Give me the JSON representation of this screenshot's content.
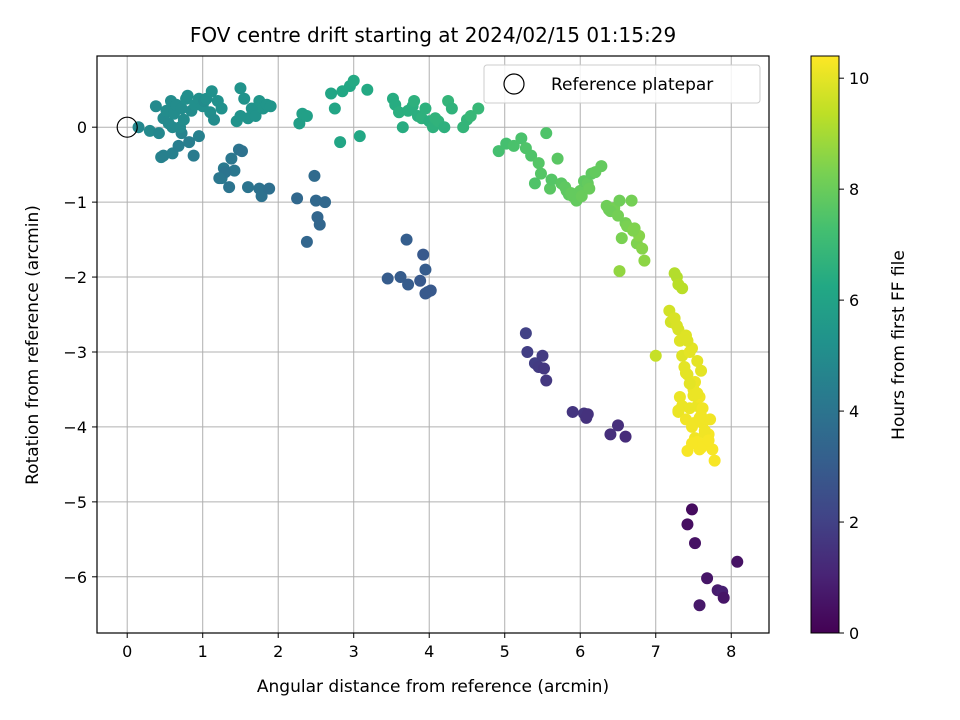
{
  "chart_data": {
    "type": "scatter",
    "title": "FOV centre drift starting at 2024/02/15 01:15:29",
    "xlabel": "Angular distance from reference (arcmin)",
    "ylabel": "Rotation from reference (arcmin)",
    "xlim": [
      -0.4,
      8.5
    ],
    "ylim": [
      -6.75,
      0.95
    ],
    "xticks": [
      0,
      1,
      2,
      3,
      4,
      5,
      6,
      7,
      8
    ],
    "yticks": [
      0,
      -1,
      -2,
      -3,
      -4,
      -5,
      -6
    ],
    "xtick_labels": [
      "0",
      "1",
      "2",
      "3",
      "4",
      "5",
      "6",
      "7",
      "8"
    ],
    "ytick_labels": [
      "0",
      "−1",
      "−2",
      "−3",
      "−4",
      "−5",
      "−6"
    ],
    "grid": true,
    "colormap": "viridis",
    "color_values_label": "Hours from first FF file",
    "colorbar": {
      "label": "Hours from first FF file",
      "range": [
        0,
        10.4
      ],
      "ticks": [
        0,
        2,
        4,
        6,
        8,
        10
      ],
      "tick_labels": [
        "0",
        "2",
        "4",
        "6",
        "8",
        "10"
      ]
    },
    "reference": {
      "name": "Reference platepar",
      "x": 0,
      "y": 0
    },
    "legend": {
      "entries": [
        "Reference platepar"
      ],
      "location": "upper right"
    },
    "series": [
      {
        "x": [
          7.48,
          7.42,
          7.52,
          7.68,
          7.58,
          7.82,
          7.88,
          7.9,
          8.08
        ],
        "y": [
          -5.1,
          -5.3,
          -5.55,
          -6.02,
          -6.38,
          -6.18,
          -6.2,
          -6.28,
          -5.8
        ],
        "c": [
          0.3,
          0.4,
          0.5,
          0.6,
          0.7,
          0.8,
          0.9,
          0.6,
          0.5
        ]
      },
      {
        "x": [
          5.28,
          5.3,
          5.4,
          5.45,
          5.5,
          5.52,
          5.55,
          5.9,
          6.05,
          6.08,
          6.1,
          6.4,
          6.5,
          6.6
        ],
        "y": [
          -2.75,
          -3.0,
          -3.15,
          -3.2,
          -3.05,
          -3.22,
          -3.38,
          -3.8,
          -3.82,
          -3.88,
          -3.83,
          -4.1,
          -3.98,
          -4.13
        ],
        "c": [
          2.0,
          1.9,
          1.9,
          1.8,
          1.8,
          1.7,
          1.7,
          1.6,
          1.6,
          1.5,
          1.5,
          1.4,
          1.4,
          1.3
        ]
      },
      {
        "x": [
          3.45,
          3.62,
          3.7,
          3.72,
          3.88,
          3.92,
          3.95,
          3.98,
          4.02,
          3.95
        ],
        "y": [
          -2.02,
          -2.0,
          -1.5,
          -2.1,
          -2.05,
          -1.7,
          -1.9,
          -2.2,
          -2.18,
          -2.22
        ],
        "c": [
          3.0,
          3.0,
          3.1,
          3.0,
          2.9,
          2.9,
          3.0,
          3.0,
          2.9,
          2.9
        ]
      },
      {
        "x": [
          2.25,
          2.38,
          2.48,
          2.5,
          2.55,
          2.62,
          2.52
        ],
        "y": [
          -0.95,
          -1.53,
          -0.65,
          -0.98,
          -1.3,
          -1.0,
          -1.2
        ],
        "c": [
          3.5,
          3.4,
          3.6,
          3.5,
          3.4,
          3.5,
          3.4
        ]
      },
      {
        "x": [
          0.45,
          0.48,
          0.6,
          0.68,
          0.72,
          0.82,
          0.88,
          0.95,
          1.25,
          1.28,
          1.38,
          1.42,
          1.35,
          1.48,
          1.6,
          1.75,
          1.78,
          1.88,
          1.3,
          1.22,
          1.52
        ],
        "y": [
          -0.4,
          -0.38,
          -0.35,
          -0.25,
          -0.08,
          -0.2,
          -0.38,
          -0.12,
          -0.68,
          -0.55,
          -0.42,
          -0.58,
          -0.8,
          -0.3,
          -0.8,
          -0.82,
          -0.92,
          -0.82,
          -0.6,
          -0.68,
          -0.32
        ],
        "c": [
          4.6,
          4.5,
          4.5,
          4.4,
          4.6,
          4.4,
          4.3,
          4.5,
          4.2,
          4.2,
          4.1,
          4.1,
          4.0,
          4.0,
          4.0,
          3.9,
          3.9,
          3.8,
          4.0,
          4.1,
          3.9
        ]
      },
      {
        "x": [
          0.15,
          0.3,
          0.38,
          0.42,
          0.48,
          0.52,
          0.55,
          0.58,
          0.6,
          0.62,
          0.65,
          0.7,
          0.72,
          0.75,
          0.78,
          0.8,
          0.85,
          0.9,
          0.95,
          1.0,
          1.02,
          1.05,
          1.1,
          1.12,
          1.15,
          1.2,
          1.25,
          1.5,
          1.55,
          1.6,
          1.65,
          1.7,
          1.75,
          1.8,
          1.85,
          1.9,
          1.45,
          1.5
        ],
        "y": [
          0.0,
          -0.05,
          0.28,
          -0.08,
          0.12,
          0.22,
          0.05,
          0.35,
          0.0,
          0.18,
          0.3,
          0.0,
          0.25,
          0.1,
          0.38,
          0.42,
          0.22,
          0.3,
          0.38,
          0.28,
          0.35,
          0.38,
          0.2,
          0.48,
          0.1,
          0.35,
          0.25,
          0.52,
          0.38,
          0.12,
          0.25,
          0.15,
          0.35,
          0.25,
          0.3,
          0.28,
          0.08,
          0.15
        ],
        "c": [
          4.8,
          4.9,
          4.9,
          4.8,
          4.9,
          5.0,
          4.9,
          5.0,
          4.9,
          5.0,
          5.0,
          4.9,
          5.0,
          5.0,
          5.1,
          5.1,
          5.0,
          5.1,
          5.1,
          5.1,
          5.0,
          5.1,
          5.1,
          5.2,
          5.0,
          5.2,
          5.2,
          5.3,
          5.3,
          5.3,
          5.3,
          5.3,
          5.4,
          5.4,
          5.4,
          5.4,
          5.3,
          5.3
        ]
      },
      {
        "x": [
          2.28,
          2.32,
          2.38,
          2.7,
          2.75,
          2.85,
          2.82,
          2.95,
          3.0,
          3.08,
          3.18,
          3.52,
          3.55,
          3.6,
          3.65,
          3.72,
          3.78,
          3.8,
          3.85,
          3.9,
          3.95,
          4.0,
          4.05,
          4.08,
          4.12,
          4.2,
          4.25,
          4.3,
          4.45,
          4.5,
          4.55,
          4.65
        ],
        "y": [
          0.05,
          0.18,
          0.15,
          0.45,
          0.25,
          0.48,
          -0.2,
          0.55,
          0.62,
          -0.12,
          0.5,
          0.38,
          0.3,
          0.2,
          0.0,
          0.22,
          0.28,
          0.35,
          0.15,
          0.12,
          0.25,
          0.08,
          0.0,
          0.12,
          0.08,
          0.0,
          0.35,
          0.25,
          0.0,
          0.1,
          0.15,
          0.25
        ],
        "c": [
          5.8,
          5.9,
          5.9,
          6.1,
          6.1,
          6.2,
          6.1,
          6.2,
          6.3,
          6.2,
          6.3,
          6.4,
          6.4,
          6.5,
          6.4,
          6.5,
          6.5,
          6.6,
          6.5,
          6.6,
          6.6,
          6.5,
          6.6,
          6.7,
          6.7,
          6.6,
          6.8,
          6.7,
          6.8,
          6.8,
          6.9,
          6.9
        ]
      },
      {
        "x": [
          4.92,
          5.02,
          5.12,
          5.22,
          5.28,
          5.35,
          5.4,
          5.45,
          5.48,
          5.55,
          5.6,
          5.62,
          5.7,
          5.75,
          5.8,
          5.82,
          5.85,
          5.88,
          5.9,
          5.95,
          6.0,
          6.02,
          6.05,
          6.1,
          6.12,
          6.15,
          6.2,
          6.28,
          6.35,
          6.38,
          6.45,
          6.52,
          6.55,
          6.6,
          6.62,
          6.68,
          6.72,
          6.75,
          6.78,
          6.82,
          6.85,
          6.52,
          6.4,
          6.5,
          6.7
        ],
        "y": [
          -0.32,
          -0.22,
          -0.25,
          -0.15,
          -0.28,
          -0.38,
          -0.75,
          -0.48,
          -0.62,
          -0.08,
          -0.82,
          -0.7,
          -0.42,
          -0.75,
          -0.8,
          -0.85,
          -0.9,
          -0.88,
          -0.92,
          -0.98,
          -0.85,
          -0.92,
          -0.72,
          -0.75,
          -0.82,
          -0.62,
          -0.6,
          -0.52,
          -1.05,
          -1.1,
          -1.08,
          -0.98,
          -1.48,
          -1.28,
          -1.32,
          -0.98,
          -1.35,
          -1.55,
          -1.45,
          -1.62,
          -1.78,
          -1.92,
          -1.12,
          -1.18,
          -1.38
        ],
        "c": [
          7.3,
          7.3,
          7.4,
          7.4,
          7.5,
          7.5,
          7.5,
          7.6,
          7.6,
          7.5,
          7.7,
          7.6,
          7.7,
          7.7,
          7.8,
          7.8,
          7.8,
          7.9,
          7.9,
          7.9,
          7.9,
          8.0,
          7.8,
          7.9,
          8.0,
          7.8,
          7.9,
          7.9,
          8.1,
          8.1,
          8.2,
          8.1,
          8.3,
          8.2,
          8.3,
          8.2,
          8.4,
          8.4,
          8.5,
          8.5,
          8.6,
          8.7,
          8.1,
          8.2,
          8.4
        ]
      },
      {
        "x": [
          7.0,
          7.18,
          7.2,
          7.25,
          7.28,
          7.3,
          7.32,
          7.35,
          7.38,
          7.4,
          7.42,
          7.45,
          7.48,
          7.5,
          7.52,
          7.55,
          7.58,
          7.6,
          7.62,
          7.65,
          7.68,
          7.7,
          7.72,
          7.75,
          7.78,
          7.3,
          7.32,
          7.35,
          7.4,
          7.45,
          7.48,
          7.5,
          7.52,
          7.55,
          7.58,
          7.6,
          7.28,
          7.25,
          7.3,
          7.35,
          7.4,
          7.45,
          7.5,
          7.55,
          7.58,
          7.62,
          7.65,
          7.7,
          7.42,
          7.48,
          7.55,
          7.6,
          7.3,
          7.42
        ],
        "y": [
          -3.05,
          -2.45,
          -2.6,
          -2.55,
          -2.65,
          -2.7,
          -2.85,
          -3.05,
          -3.2,
          -2.78,
          -3.3,
          -3.0,
          -2.95,
          -3.5,
          -3.4,
          -3.72,
          -3.6,
          -3.85,
          -3.95,
          -4.05,
          -4.2,
          -4.1,
          -3.9,
          -4.3,
          -4.45,
          -3.8,
          -3.6,
          -3.72,
          -3.9,
          -3.75,
          -4.0,
          -3.95,
          -4.15,
          -4.2,
          -4.3,
          -4.28,
          -2.0,
          -1.95,
          -2.1,
          -2.15,
          -3.28,
          -3.42,
          -3.58,
          -3.55,
          -3.88,
          -3.75,
          -4.08,
          -4.18,
          -4.32,
          -4.22,
          -3.12,
          -3.25,
          -3.78,
          -2.85
        ],
        "c": [
          9.5,
          9.7,
          9.7,
          9.8,
          9.8,
          9.8,
          9.9,
          9.9,
          10.0,
          9.9,
          10.0,
          10.0,
          10.0,
          10.1,
          10.1,
          10.1,
          10.2,
          10.2,
          10.2,
          10.2,
          10.3,
          10.3,
          10.2,
          10.3,
          10.3,
          10.1,
          10.1,
          10.1,
          10.2,
          10.1,
          10.2,
          10.2,
          10.2,
          10.3,
          10.3,
          10.3,
          9.2,
          9.2,
          9.3,
          9.3,
          10.0,
          10.0,
          10.1,
          10.1,
          10.2,
          10.2,
          10.2,
          10.3,
          10.3,
          10.3,
          10.0,
          10.0,
          10.1,
          9.9
        ]
      }
    ]
  }
}
